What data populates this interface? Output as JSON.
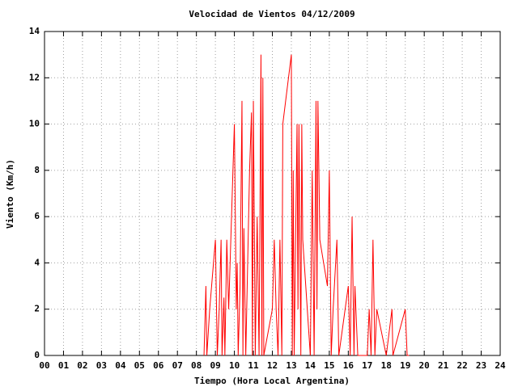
{
  "chart_data": {
    "type": "line",
    "title": "Velocidad de Vientos 04/12/2009",
    "xlabel": "Tiempo (Hora Local Argentina)",
    "ylabel": "Viento (Km/h)",
    "xlim": [
      0,
      24
    ],
    "ylim": [
      0,
      14
    ],
    "xticks": [
      {
        "value": 0,
        "label": "00"
      },
      {
        "value": 1,
        "label": "01"
      },
      {
        "value": 2,
        "label": "02"
      },
      {
        "value": 3,
        "label": "03"
      },
      {
        "value": 4,
        "label": "04"
      },
      {
        "value": 5,
        "label": "05"
      },
      {
        "value": 6,
        "label": "06"
      },
      {
        "value": 7,
        "label": "07"
      },
      {
        "value": 8,
        "label": "08"
      },
      {
        "value": 9,
        "label": "09"
      },
      10,
      11,
      12,
      13,
      14,
      15,
      16,
      17,
      18,
      19,
      20,
      21,
      22,
      23,
      24
    ],
    "yticks": [
      0,
      2,
      4,
      6,
      8,
      10,
      12,
      14
    ],
    "grid": true,
    "series": [
      {
        "color": "#ff0000",
        "x": [
          8.4,
          8.5,
          8.55,
          8.7,
          9.0,
          9.1,
          9.2,
          9.3,
          9.35,
          9.45,
          9.5,
          9.6,
          9.7,
          10.0,
          10.1,
          10.15,
          10.2,
          10.3,
          10.4,
          10.45,
          10.5,
          10.6,
          10.8,
          10.9,
          10.95,
          11.0,
          11.1,
          11.2,
          11.3,
          11.4,
          11.45,
          11.5,
          11.55,
          12.0,
          12.1,
          12.2,
          12.3,
          12.4,
          12.5,
          12.55,
          13.0,
          13.05,
          13.1,
          13.15,
          13.3,
          13.35,
          13.4,
          13.5,
          13.55,
          13.6,
          14.0,
          14.1,
          14.2,
          14.3,
          14.35,
          14.4,
          14.5,
          14.9,
          15.0,
          15.1,
          15.2,
          15.4,
          15.5,
          16.0,
          16.1,
          16.2,
          16.3,
          16.35,
          16.5,
          17.0,
          17.1,
          17.2,
          17.3,
          17.4,
          17.5,
          18.0,
          18.3,
          18.35,
          19.0,
          19.1,
          19.2
        ],
        "values": [
          0,
          3,
          0,
          2,
          5,
          0,
          2,
          5,
          0,
          2.5,
          0,
          5,
          2,
          10,
          2,
          4,
          0,
          3,
          11,
          0,
          5.5,
          0,
          8,
          10.5,
          0,
          11,
          0,
          6,
          0,
          13,
          0,
          12,
          0,
          2,
          5,
          2,
          0,
          5,
          0,
          10,
          13,
          0,
          8,
          0,
          10,
          2,
          10,
          0,
          10,
          5,
          0,
          8,
          0,
          11,
          2,
          11,
          5,
          3,
          8,
          0,
          2,
          5,
          0,
          3,
          0,
          6,
          0,
          3,
          0,
          0,
          2,
          0,
          5,
          0,
          2,
          0,
          2,
          0,
          2,
          0,
          0
        ]
      }
    ]
  }
}
